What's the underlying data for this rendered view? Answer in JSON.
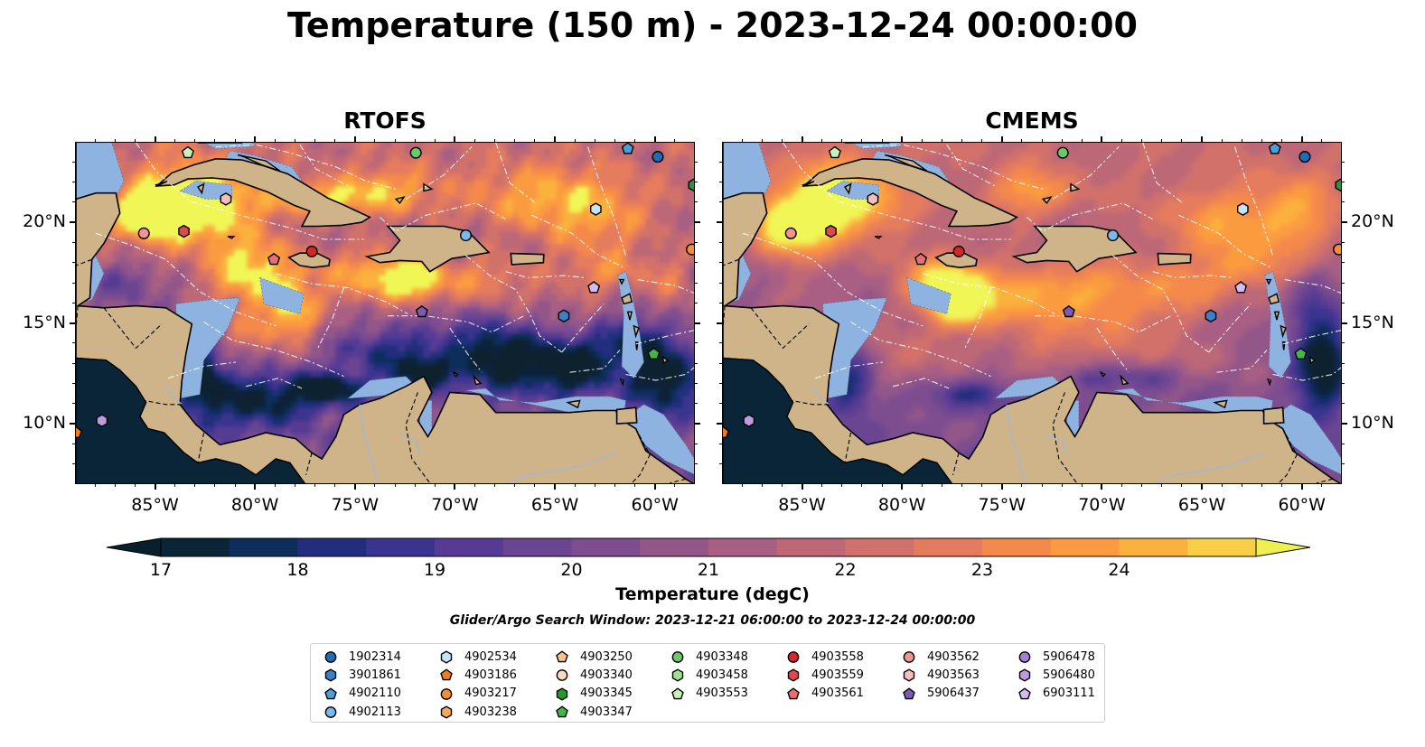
{
  "title": "Temperature (150 m) - 2023-12-24 00:00:00",
  "panels": [
    {
      "id": "rtofs",
      "title": "RTOFS"
    },
    {
      "id": "cmems",
      "title": "CMEMS"
    }
  ],
  "axes": {
    "lon_ticks": [
      "85°W",
      "80°W",
      "75°W",
      "70°W",
      "65°W",
      "60°W"
    ],
    "lat_ticks": [
      "20°N",
      "15°N",
      "10°N"
    ],
    "lon_range": [
      -89,
      -58
    ],
    "lat_range": [
      7,
      24
    ]
  },
  "colorbar": {
    "label": "Temperature (degC)",
    "ticks": [
      "17",
      "18",
      "19",
      "20",
      "21",
      "22",
      "23",
      "24"
    ],
    "min": 17,
    "max": 24.5,
    "extend": "both",
    "colors": [
      "#0a2438",
      "#0d2d5a",
      "#232d7e",
      "#3a3490",
      "#563a93",
      "#6b4592",
      "#7e4d90",
      "#935689",
      "#a85f83",
      "#bd6777",
      "#d1716b",
      "#e47b5d",
      "#f4894c",
      "#fb9b40",
      "#fbb13d",
      "#f8cf47",
      "#eef050"
    ],
    "under_color": "#08202e",
    "over_color": "#f0f657"
  },
  "search_window": "Glider/Argo Search Window: 2023-12-21 06:00:00 to 2023-12-24 00:00:00",
  "colors": {
    "land": "#cfb48a",
    "shelf": "#8eb3e0",
    "river": "#a9b7cc",
    "coast": "#000000"
  },
  "legend": {
    "columns": [
      [
        {
          "label": "1902314",
          "shape": "circle",
          "color": "#1f6db5"
        },
        {
          "label": "3901861",
          "shape": "hexagon",
          "color": "#3b7fc4"
        },
        {
          "label": "4902110",
          "shape": "pentagon",
          "color": "#4a9fd8"
        },
        {
          "label": "4902113",
          "shape": "circle",
          "color": "#7cb9ea"
        }
      ],
      [
        {
          "label": "4902534",
          "shape": "hexagon",
          "color": "#c5e4f7"
        },
        {
          "label": "4903186",
          "shape": "pentagon",
          "color": "#f07d1d"
        },
        {
          "label": "4903217",
          "shape": "circle",
          "color": "#f68d36"
        },
        {
          "label": "4903238",
          "shape": "hexagon",
          "color": "#f7a960"
        }
      ],
      [
        {
          "label": "4903250",
          "shape": "pentagon",
          "color": "#f8c28b"
        },
        {
          "label": "4903340",
          "shape": "circle",
          "color": "#fcdcbd"
        },
        {
          "label": "4903345",
          "shape": "hexagon",
          "color": "#259a2b"
        },
        {
          "label": "4903347",
          "shape": "pentagon",
          "color": "#43b549"
        }
      ],
      [
        {
          "label": "4903348",
          "shape": "circle",
          "color": "#6cc96a"
        },
        {
          "label": "4903458",
          "shape": "hexagon",
          "color": "#9fdf92"
        },
        {
          "label": "4903553",
          "shape": "pentagon",
          "color": "#c8f0bb"
        }
      ],
      [
        {
          "label": "4903558",
          "shape": "circle",
          "color": "#d62728"
        },
        {
          "label": "4903559",
          "shape": "hexagon",
          "color": "#de4a4a"
        },
        {
          "label": "4903561",
          "shape": "pentagon",
          "color": "#e87070"
        }
      ],
      [
        {
          "label": "4903562",
          "shape": "circle",
          "color": "#f19494"
        },
        {
          "label": "4903563",
          "shape": "hexagon",
          "color": "#f7bcbc"
        },
        {
          "label": "5906437",
          "shape": "pentagon",
          "color": "#8059b4"
        }
      ],
      [
        {
          "label": "5906478",
          "shape": "circle",
          "color": "#a77fd4"
        },
        {
          "label": "5906480",
          "shape": "hexagon",
          "color": "#be9be0"
        },
        {
          "label": "6903111",
          "shape": "pentagon",
          "color": "#d8b9ef"
        }
      ]
    ]
  },
  "platforms": [
    {
      "id": "1902314",
      "lon": -59.9,
      "lat": 23.3
    },
    {
      "id": "4902110",
      "lon": -61.4,
      "lat": 23.7
    },
    {
      "id": "4903345",
      "lon": -58.1,
      "lat": 21.9
    },
    {
      "id": "4902534",
      "lon": -63.0,
      "lat": 20.7
    },
    {
      "id": "4903217",
      "lon": -58.2,
      "lat": 18.7
    },
    {
      "id": "4902113",
      "lon": -69.5,
      "lat": 19.4
    },
    {
      "id": "4903558",
      "lon": -77.2,
      "lat": 18.6
    },
    {
      "id": "4903561",
      "lon": -79.1,
      "lat": 18.2
    },
    {
      "id": "4903559",
      "lon": -83.6,
      "lat": 19.6
    },
    {
      "id": "4903562",
      "lon": -85.6,
      "lat": 19.5
    },
    {
      "id": "4903563",
      "lon": -81.5,
      "lat": 21.2
    },
    {
      "id": "4903553",
      "lon": -83.4,
      "lat": 23.5
    },
    {
      "id": "4903348",
      "lon": -72.0,
      "lat": 23.5
    },
    {
      "id": "6903111",
      "lon": -63.1,
      "lat": 16.8
    },
    {
      "id": "5906437",
      "lon": -71.7,
      "lat": 15.6
    },
    {
      "id": "3901861",
      "lon": -64.6,
      "lat": 15.4
    },
    {
      "id": "4903347",
      "lon": -60.1,
      "lat": 13.5
    },
    {
      "id": "5906480",
      "lon": -87.7,
      "lat": 10.2
    },
    {
      "id": "4903186",
      "lon": -89.0,
      "lat": 9.6
    }
  ]
}
